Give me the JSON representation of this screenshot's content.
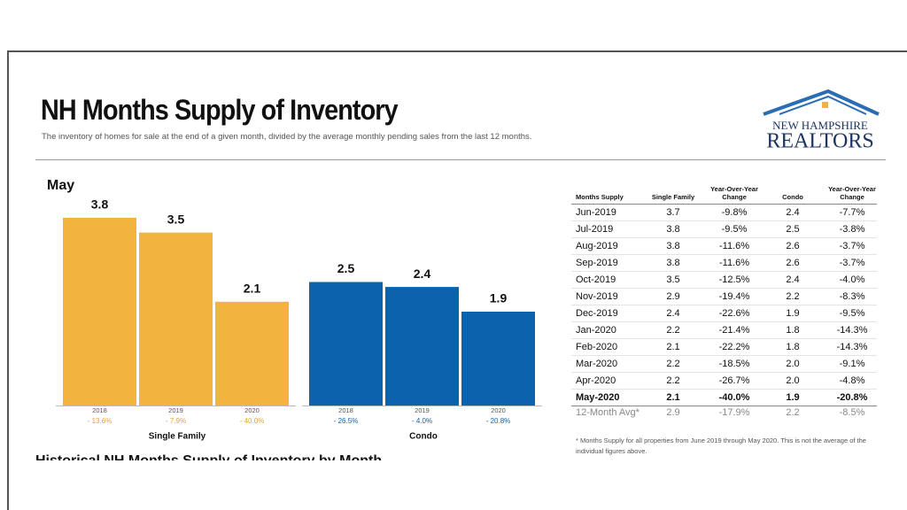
{
  "header": {
    "title": "NH Months Supply of Inventory",
    "subtitle": "The inventory of homes for sale at the end of a given month, divided by the average monthly pending sales from the last 12 months.",
    "logo_top": "NEW HAMPSHIRE",
    "logo_bottom": "REALTORS"
  },
  "chart_data": {
    "type": "bar",
    "title": "May",
    "groups": [
      {
        "name": "Single Family",
        "color": "#f2b43e",
        "categories": [
          "2018",
          "2019",
          "2020"
        ],
        "values": [
          3.8,
          3.5,
          2.1
        ],
        "changes": [
          "- 13.6%",
          "- 7.9%",
          "- 40.0%"
        ],
        "change_color": "#e8a22a"
      },
      {
        "name": "Condo",
        "color": "#0b63ad",
        "categories": [
          "2018",
          "2019",
          "2020"
        ],
        "values": [
          2.5,
          2.4,
          1.9
        ],
        "changes": [
          "- 26.5%",
          "- 4.0%",
          "- 20.8%"
        ],
        "change_color": "#0b63ad"
      }
    ]
  },
  "table": {
    "header": [
      "Months Supply",
      "Single Family",
      "Year-Over-Year Change",
      "Condo",
      "Year-Over-Year Change"
    ],
    "rows": [
      [
        "Jun-2019",
        "3.7",
        "-9.8%",
        "2.4",
        "-7.7%"
      ],
      [
        "Jul-2019",
        "3.8",
        "-9.5%",
        "2.5",
        "-3.8%"
      ],
      [
        "Aug-2019",
        "3.8",
        "-11.6%",
        "2.6",
        "-3.7%"
      ],
      [
        "Sep-2019",
        "3.8",
        "-11.6%",
        "2.6",
        "-3.7%"
      ],
      [
        "Oct-2019",
        "3.5",
        "-12.5%",
        "2.4",
        "-4.0%"
      ],
      [
        "Nov-2019",
        "2.9",
        "-19.4%",
        "2.2",
        "-8.3%"
      ],
      [
        "Dec-2019",
        "2.4",
        "-22.6%",
        "1.9",
        "-9.5%"
      ],
      [
        "Jan-2020",
        "2.2",
        "-21.4%",
        "1.8",
        "-14.3%"
      ],
      [
        "Feb-2020",
        "2.1",
        "-22.2%",
        "1.8",
        "-14.3%"
      ],
      [
        "Mar-2020",
        "2.2",
        "-18.5%",
        "2.0",
        "-9.1%"
      ],
      [
        "Apr-2020",
        "2.2",
        "-26.7%",
        "2.0",
        "-4.8%"
      ],
      [
        "May-2020",
        "2.1",
        "-40.0%",
        "1.9",
        "-20.8%"
      ]
    ],
    "footer": [
      "12-Month Avg*",
      "2.9",
      "-17.9%",
      "2.2",
      "-8.5%"
    ]
  },
  "footnote": "* Months Supply for all properties from June 2019 through May 2020. This is not the average of the individual figures above.",
  "next_section": "Historical NH Months Supply of Inventory by Month"
}
